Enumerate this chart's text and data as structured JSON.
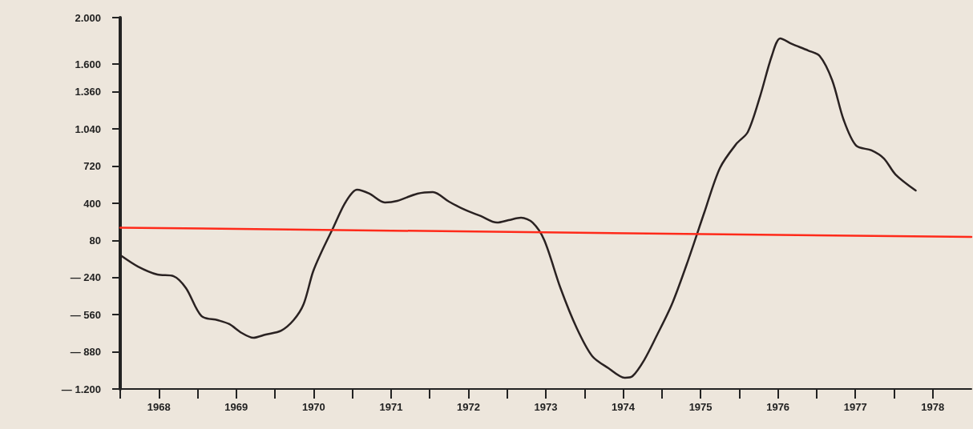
{
  "chart_data": {
    "type": "line",
    "xlim": [
      1968,
      1979
    ],
    "ylim": [
      -1200,
      2000
    ],
    "xticks": [
      {
        "value": 1968,
        "label": null
      },
      {
        "value": 1968.5,
        "label": "1968"
      },
      {
        "value": 1969,
        "label": null
      },
      {
        "value": 1969.5,
        "label": "1969"
      },
      {
        "value": 1970,
        "label": null
      },
      {
        "value": 1970.5,
        "label": "1970"
      },
      {
        "value": 1971,
        "label": null
      },
      {
        "value": 1971.5,
        "label": "1971"
      },
      {
        "value": 1972,
        "label": null
      },
      {
        "value": 1972.5,
        "label": "1972"
      },
      {
        "value": 1973,
        "label": null
      },
      {
        "value": 1973.5,
        "label": "1973"
      },
      {
        "value": 1974,
        "label": null
      },
      {
        "value": 1974.5,
        "label": "1974"
      },
      {
        "value": 1975,
        "label": null
      },
      {
        "value": 1975.5,
        "label": "1975"
      },
      {
        "value": 1976,
        "label": null
      },
      {
        "value": 1976.5,
        "label": "1976"
      },
      {
        "value": 1977,
        "label": null
      },
      {
        "value": 1977.5,
        "label": "1977"
      },
      {
        "value": 1978,
        "label": null
      },
      {
        "value": 1978.5,
        "label": "1978"
      }
    ],
    "yticks": [
      {
        "value": -1200,
        "label": "— 1.200"
      },
      {
        "value": -880,
        "label": "— 880"
      },
      {
        "value": -560,
        "label": "— 560"
      },
      {
        "value": -240,
        "label": "— 240"
      },
      80,
      400,
      720,
      {
        "value": 1040,
        "label": "1.040"
      },
      {
        "value": 1360,
        "label": "1.360"
      },
      {
        "value": 1600,
        "label": "1.600"
      },
      {
        "value": 2000,
        "label": "2.000"
      }
    ],
    "grid": false,
    "marker": "none",
    "line_style": "solid",
    "series": [
      {
        "color": "#2a2222",
        "x": [
          1968.02,
          1968.23,
          1968.48,
          1968.69,
          1968.85,
          1969.05,
          1969.26,
          1969.41,
          1969.57,
          1969.72,
          1969.88,
          1970.08,
          1970.24,
          1970.37,
          1970.49,
          1970.6,
          1970.75,
          1970.91,
          1971.06,
          1971.22,
          1971.42,
          1971.58,
          1971.84,
          1972.04,
          1972.25,
          1972.45,
          1972.66,
          1972.87,
          1973.02,
          1973.18,
          1973.33,
          1973.48,
          1973.69,
          1973.9,
          1974.1,
          1974.31,
          1974.52,
          1974.62,
          1974.77,
          1974.93,
          1975.13,
          1975.34,
          1975.55,
          1975.75,
          1975.96,
          1976.11,
          1976.27,
          1976.42,
          1976.53,
          1976.68,
          1976.89,
          1977.04,
          1977.2,
          1977.35,
          1977.51,
          1977.71,
          1977.87,
          1978.02,
          1978.28
        ],
        "values": [
          -55,
          -145,
          -214,
          -228,
          -331,
          -572,
          -607,
          -641,
          -717,
          -759,
          -731,
          -697,
          -607,
          -469,
          -193,
          -21,
          186,
          407,
          517,
          483,
          407,
          421,
          483,
          497,
          414,
          345,
          290,
          234,
          255,
          276,
          234,
          83,
          -331,
          -676,
          -917,
          -1021,
          -1103,
          -1090,
          -952,
          -745,
          -469,
          -90,
          324,
          704,
          910,
          1014,
          1324,
          1669,
          1821,
          1773,
          1717,
          1669,
          1462,
          1117,
          897,
          856,
          786,
          648,
          510
        ]
      },
      {
        "color": "#ff2a1a",
        "x": [
          1968,
          1979
        ],
        "values": [
          190,
          110
        ]
      }
    ]
  }
}
